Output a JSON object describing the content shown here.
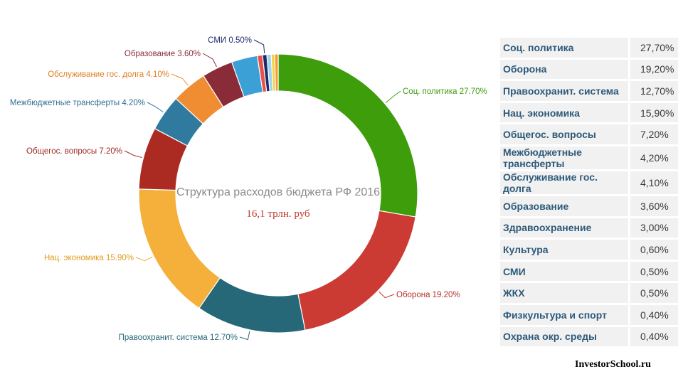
{
  "chart_data": {
    "type": "pie",
    "title": "Структура расходов бюджета РФ 2016",
    "subtitle": "16,1 трлн. руб",
    "slices": [
      {
        "label": "Соц. политика",
        "value": 27.7,
        "color": "#3e9d0b",
        "callout": "Соц. политика 27.70%",
        "label_color": "#3e9d0b"
      },
      {
        "label": "Оборона",
        "value": 19.2,
        "color": "#cc3a34",
        "callout": "Оборона 19.20%",
        "label_color": "#b5302b"
      },
      {
        "label": "Правоохранит. система",
        "value": 12.7,
        "color": "#276878",
        "callout": "Правоохранит. система 12.70%",
        "label_color": "#276878"
      },
      {
        "label": "Нац. экономика",
        "value": 15.9,
        "color": "#f4b03a",
        "callout": "Нац. экономика 15.90%",
        "label_color": "#e19a1c"
      },
      {
        "label": "Общегос. вопросы",
        "value": 7.2,
        "color": "#ab2b23",
        "callout": "Общегос. вопросы 7.20%",
        "label_color": "#9b2a22"
      },
      {
        "label": "Межбюджетные трансферты",
        "value": 4.2,
        "color": "#2f7a9e",
        "callout": "Межбюджетные трансферты 4.20%",
        "label_color": "#2f6f8e"
      },
      {
        "label": "Обслуживание гос. долга",
        "value": 4.1,
        "color": "#f08c32",
        "callout": "Обслуживание гос. долга 4.10%",
        "label_color": "#e07f22"
      },
      {
        "label": "Образование",
        "value": 3.6,
        "color": "#8a2c37",
        "callout": "Образование 3.60%",
        "label_color": "#8a2c37"
      },
      {
        "label": "Здравоохранение",
        "value": 3.0,
        "color": "#3aa0d6",
        "callout": "",
        "label_color": "#3aa0d6"
      },
      {
        "label": "Культура",
        "value": 0.6,
        "color": "#e8524a",
        "callout": "",
        "label_color": "#e8524a"
      },
      {
        "label": "СМИ",
        "value": 0.5,
        "color": "#1d2b6b",
        "callout": "СМИ 0.50%",
        "label_color": "#1d2b6b"
      },
      {
        "label": "ЖКХ",
        "value": 0.5,
        "color": "#9fd4ee",
        "callout": "",
        "label_color": "#9fd4ee"
      },
      {
        "label": "Физкультура и спорт",
        "value": 0.4,
        "color": "#f6d23c",
        "callout": "",
        "label_color": "#f6d23c"
      },
      {
        "label": "Охрана окр. среды",
        "value": 0.4,
        "color": "#f09a3a",
        "callout": "",
        "label_color": "#f09a3a"
      }
    ]
  },
  "table": {
    "rows": [
      {
        "name": "Соц. политика",
        "value": "27,70%"
      },
      {
        "name": "Оборона",
        "value": "19,20%"
      },
      {
        "name": "Правоохранит. система",
        "value": "12,70%"
      },
      {
        "name": "Нац. экономика",
        "value": "15,90%"
      },
      {
        "name": "Общегос. вопросы",
        "value": "7,20%"
      },
      {
        "name": "Межбюджетные трансферты",
        "value": "4,20%"
      },
      {
        "name": "Обслуживание гос. долга",
        "value": "4,10%"
      },
      {
        "name": "Образование",
        "value": "3,60%"
      },
      {
        "name": "Здравоохранение",
        "value": "3,00%"
      },
      {
        "name": "Культура",
        "value": "0,60%"
      },
      {
        "name": "СМИ",
        "value": "0,50%"
      },
      {
        "name": "ЖКХ",
        "value": "0,50%"
      },
      {
        "name": "Физкультура и спорт",
        "value": "0,40%"
      },
      {
        "name": "Охрана окр. среды",
        "value": "0,40%"
      }
    ]
  },
  "credit": "InvestorSchool.ru"
}
